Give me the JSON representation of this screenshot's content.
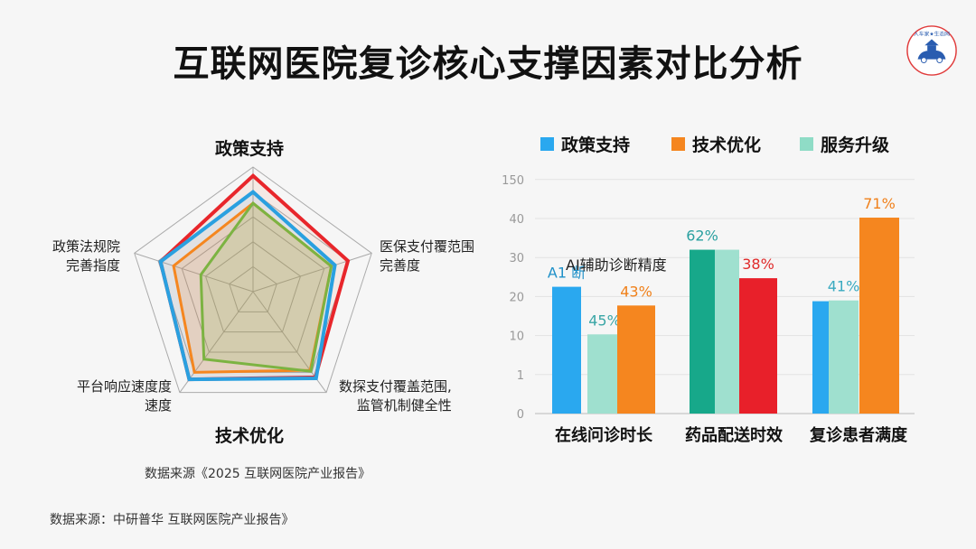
{
  "title": "互联网医院复诊核心支撑因素对比分析",
  "logo": {
    "text": "人车家★生态网",
    "icon": "car-house-seal"
  },
  "radar": {
    "top_label": "政策支持",
    "bottom_label": "技术优化",
    "axes": [
      "",
      "医保支付覆范围\n完善度",
      "数探支付覆盖范围,\n监管机制健全性",
      "平台响应速度度\n速度",
      "政策法规院\n完善指度"
    ],
    "source": "数据来源《2025  互联网医院产业报告》"
  },
  "bar_legend": [
    {
      "label": "政策支持",
      "color": "#2aa8ef"
    },
    {
      "label": "技术优化",
      "color": "#f5861f"
    },
    {
      "label": "服务升级",
      "color": "#8fdcc6"
    }
  ],
  "annotation": "AI辅助诊断精度",
  "footer_source": "数据来源：中研普华 互联网医院产业报告》",
  "chart_data": [
    {
      "type": "radar",
      "axes": [
        "政策支持",
        "医保支付覆范围完善度",
        "数探支付覆盖范围,监管机制健全性",
        "平台响应速度度速度",
        "政策法规院完善指度"
      ],
      "rings": 5,
      "series": [
        {
          "color": "#e8262b",
          "values": [
            0.93,
            0.8,
            0.85,
            0.87,
            0.78
          ]
        },
        {
          "color": "#2aa0e0",
          "values": [
            0.8,
            0.69,
            0.86,
            0.87,
            0.78
          ]
        },
        {
          "color": "#f5861f",
          "values": [
            0.71,
            0.66,
            0.78,
            0.8,
            0.67
          ]
        },
        {
          "color": "#7cb342",
          "values": [
            0.71,
            0.66,
            0.79,
            0.67,
            0.44
          ]
        }
      ]
    },
    {
      "type": "bar",
      "categories": [
        "在线问诊时长",
        "药品配送时效",
        "复诊患者满度"
      ],
      "y_ticks": [
        "0",
        "1",
        "10",
        "20",
        "30",
        "40",
        "150"
      ],
      "grid": true,
      "legend_position": "top",
      "bars": [
        {
          "category": 0,
          "color": "#2aa8ef",
          "value": 22.5,
          "label": "A1 断",
          "label_color": "#1e90c8"
        },
        {
          "category": 0,
          "color": "#9fe0cf",
          "value": 10.3,
          "label": "45%",
          "label_color": "#3aa6a6"
        },
        {
          "category": 0,
          "color": "#f5861f",
          "value": 17.7,
          "label": "43%",
          "label_color": "#f0801a"
        },
        {
          "category": 1,
          "color": "#17a88a",
          "value": 32,
          "label": "62%",
          "label_color": "#2aa0a0"
        },
        {
          "category": 1,
          "color": "#9fe0cf",
          "value": 32,
          "label": "",
          "label_color": "#2aa0a0"
        },
        {
          "category": 1,
          "color": "#e8202a",
          "value": 24.7,
          "label": "38%",
          "label_color": "#e02a2a"
        },
        {
          "category": 2,
          "color": "#2aa8ef",
          "value": 18.8,
          "label": "",
          "label_color": "#2aa0c0"
        },
        {
          "category": 2,
          "color": "#9fe0cf",
          "value": 19,
          "label": "41%",
          "label_color": "#3aaac0"
        },
        {
          "category": 2,
          "color": "#f5861f",
          "value": 42.5,
          "label": "71%",
          "label_color": "#f0801a"
        }
      ]
    }
  ]
}
